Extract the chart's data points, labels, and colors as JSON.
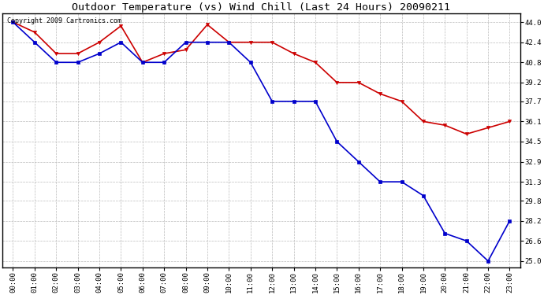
{
  "title": "Outdoor Temperature (vs) Wind Chill (Last 24 Hours) 20090211",
  "copyright_text": "Copyright 2009 Cartronics.com",
  "x_labels": [
    "00:00",
    "01:00",
    "02:00",
    "03:00",
    "04:00",
    "05:00",
    "06:00",
    "07:00",
    "08:00",
    "09:00",
    "10:00",
    "11:00",
    "12:00",
    "13:00",
    "14:00",
    "15:00",
    "16:00",
    "17:00",
    "18:00",
    "19:00",
    "20:00",
    "21:00",
    "22:00",
    "23:00"
  ],
  "temp_red": [
    44.0,
    43.2,
    41.5,
    41.5,
    42.4,
    43.7,
    40.8,
    41.5,
    41.8,
    43.8,
    42.4,
    42.4,
    42.4,
    41.5,
    40.8,
    39.2,
    39.2,
    38.3,
    37.7,
    36.1,
    35.8,
    35.1,
    35.6,
    36.1
  ],
  "wind_blue": [
    44.0,
    42.4,
    40.8,
    40.8,
    41.5,
    42.4,
    40.8,
    40.8,
    42.4,
    42.4,
    42.4,
    40.8,
    37.7,
    37.7,
    37.7,
    34.5,
    32.9,
    31.3,
    31.3,
    30.2,
    27.2,
    26.6,
    25.0,
    28.2
  ],
  "ylim_min": 24.5,
  "ylim_max": 44.7,
  "yticks": [
    25.0,
    26.6,
    28.2,
    29.8,
    31.3,
    32.9,
    34.5,
    36.1,
    37.7,
    39.2,
    40.8,
    42.4,
    44.0
  ],
  "red_color": "#cc0000",
  "blue_color": "#0000cc",
  "bg_color": "#ffffff",
  "grid_color": "#bbbbbb",
  "title_fontsize": 9.5,
  "tick_fontsize": 6.5,
  "copyright_fontsize": 6.0,
  "marker_size_red": 3,
  "marker_size_blue": 3,
  "line_width": 1.2
}
